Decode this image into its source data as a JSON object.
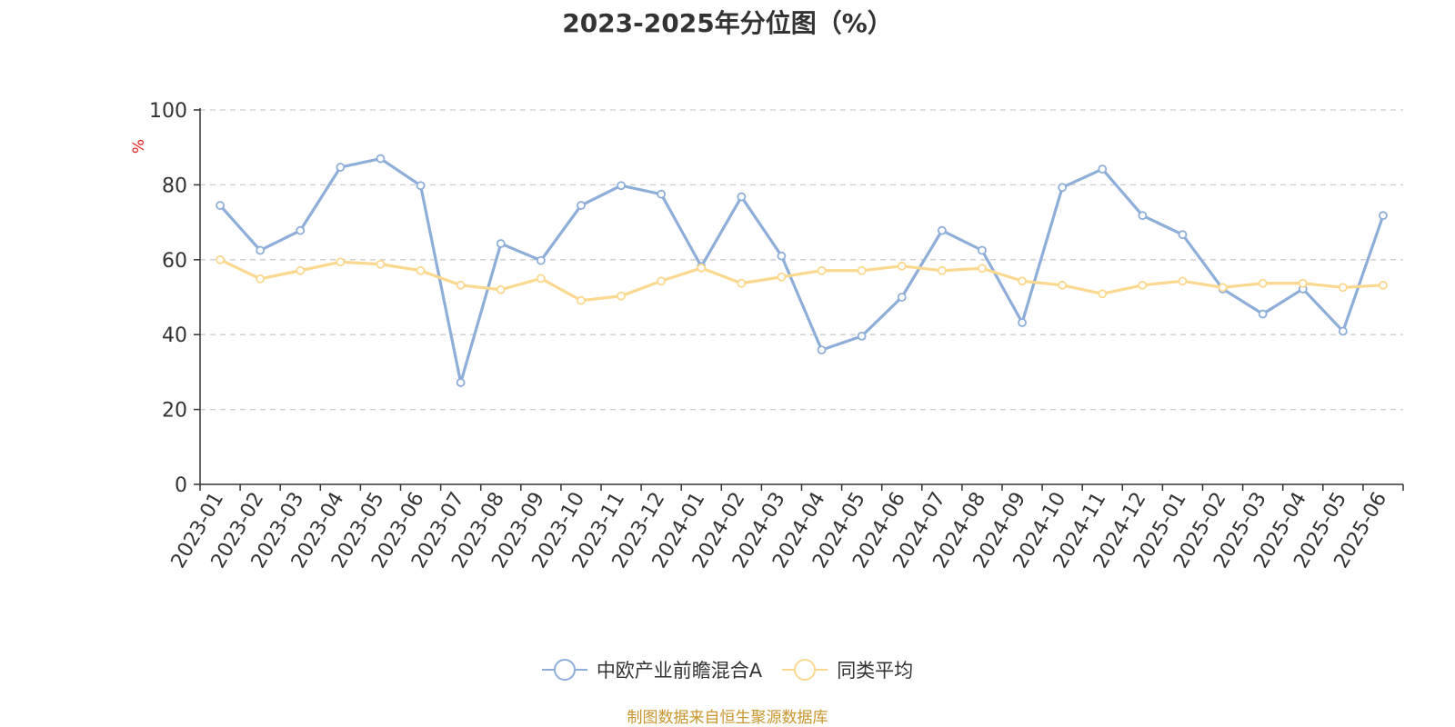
{
  "chart_data": {
    "type": "line",
    "title": "2023-2025年分位图（%）",
    "ylabel": "%",
    "ylim": [
      0,
      100
    ],
    "yticks": [
      0,
      20,
      40,
      60,
      80,
      100
    ],
    "grid": true,
    "legend_position": "bottom-center",
    "categories": [
      "2023-01",
      "2023-02",
      "2023-03",
      "2023-04",
      "2023-05",
      "2023-06",
      "2023-07",
      "2023-08",
      "2023-09",
      "2023-10",
      "2023-11",
      "2023-12",
      "2024-01",
      "2024-02",
      "2024-03",
      "2024-04",
      "2024-05",
      "2024-06",
      "2024-07",
      "2024-08",
      "2024-09",
      "2024-10",
      "2024-11",
      "2024-12",
      "2025-01",
      "2025-02",
      "2025-03",
      "2025-04",
      "2025-05",
      "2025-06"
    ],
    "series": [
      {
        "name": "中欧产业前瞻混合A",
        "color": "#8eaed9",
        "values": [
          74.5,
          62.5,
          67.8,
          84.7,
          87.0,
          79.8,
          27.2,
          64.3,
          59.8,
          74.5,
          79.8,
          77.5,
          58.2,
          76.8,
          61.0,
          35.9,
          39.6,
          50.0,
          67.8,
          62.5,
          43.2,
          79.3,
          84.2,
          71.8,
          66.7,
          52.2,
          45.5,
          52.2,
          40.9,
          71.8
        ]
      },
      {
        "name": "同类平均",
        "color": "#fbd88f",
        "values": [
          60.0,
          54.9,
          57.1,
          59.4,
          58.8,
          57.1,
          53.2,
          52.0,
          55.0,
          49.1,
          50.3,
          54.3,
          57.8,
          53.7,
          55.4,
          57.1,
          57.1,
          58.3,
          57.1,
          57.7,
          54.3,
          53.2,
          50.9,
          53.2,
          54.3,
          52.6,
          53.7,
          53.7,
          52.6,
          53.2
        ]
      }
    ]
  },
  "source_note": "制图数据来自恒生聚源数据库"
}
